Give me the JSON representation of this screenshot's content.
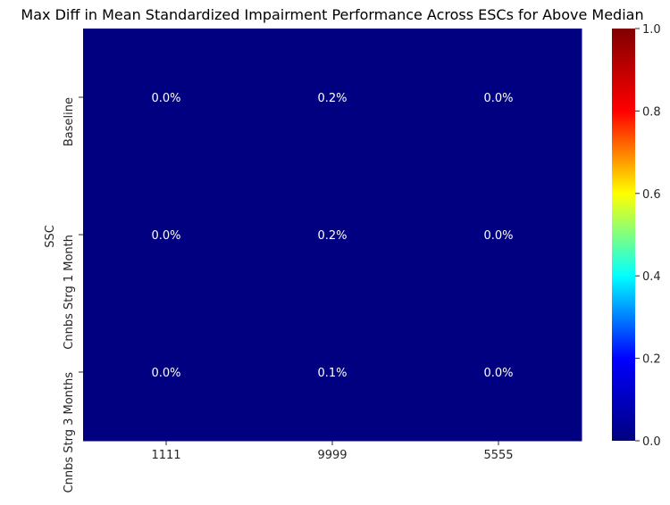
{
  "chart_data": {
    "type": "heatmap",
    "title": "Max Diff in Mean Standardized Impairment Performance Across ESCs for Above Median",
    "xlabel": "",
    "ylabel": "SSC",
    "x_categories": [
      "1111",
      "9999",
      "5555"
    ],
    "y_categories": [
      "Baseline",
      "Cnnbs Strg 1 Month",
      "Cnnbs Strg 3 Months"
    ],
    "values": [
      [
        0.0,
        0.002,
        0.0
      ],
      [
        0.0,
        0.002,
        0.0
      ],
      [
        0.0,
        0.001,
        0.0
      ]
    ],
    "cell_labels": [
      [
        "0.0%",
        "0.2%",
        "0.0%"
      ],
      [
        "0.0%",
        "0.2%",
        "0.0%"
      ],
      [
        "0.0%",
        "0.1%",
        "0.0%"
      ]
    ],
    "colormap": "jet",
    "vmin": 0.0,
    "vmax": 1.0,
    "colorbar_ticks": [
      "0.0",
      "0.2",
      "0.4",
      "0.6",
      "0.8",
      "1.0"
    ],
    "colors": {
      "jet_stops": [
        "#000080",
        "#0000ff",
        "#00ffff",
        "#ffff00",
        "#ff0000",
        "#800000"
      ],
      "cell_text": "#ffffff"
    }
  }
}
